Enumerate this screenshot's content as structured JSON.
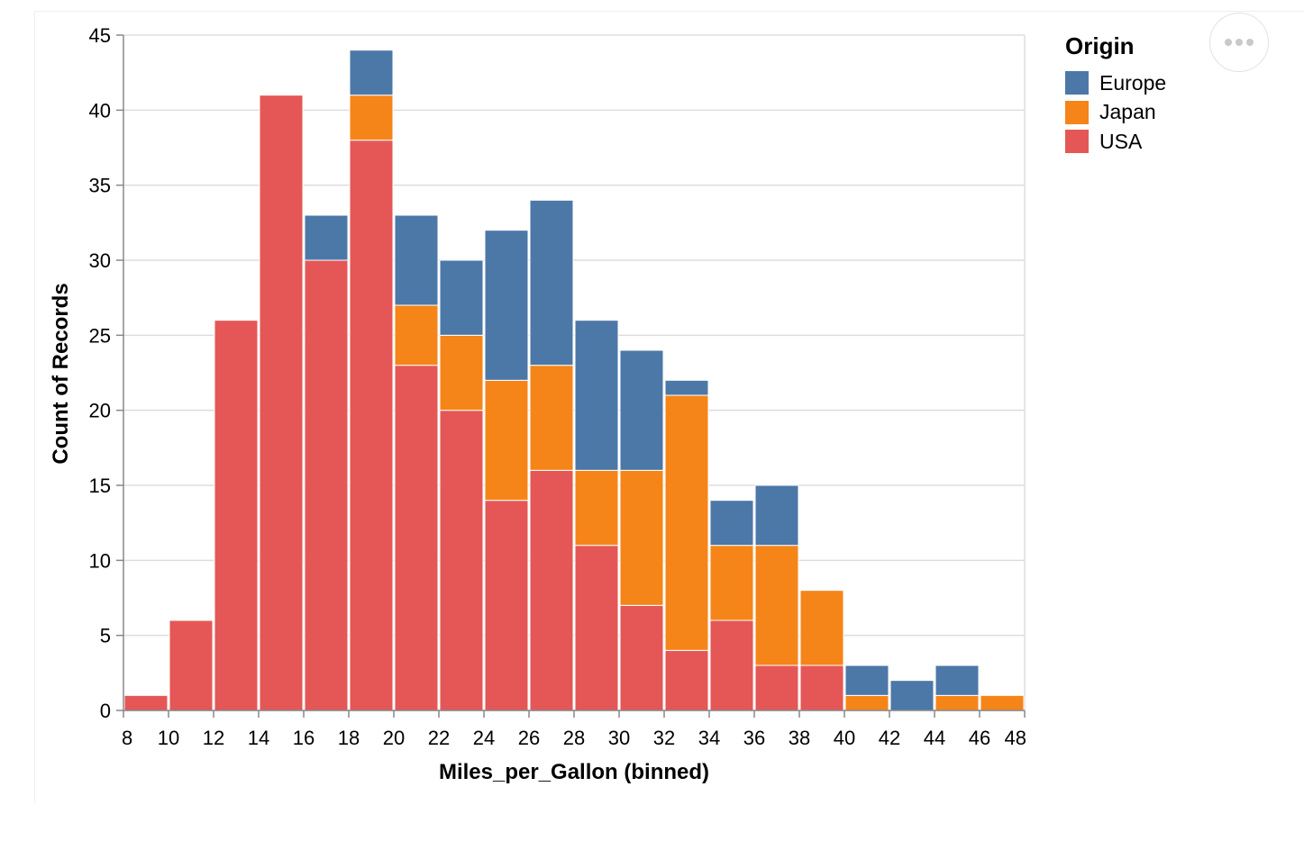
{
  "menu": {
    "icon": "ellipsis-icon"
  },
  "legend": {
    "title": "Origin",
    "items": [
      {
        "label": "Europe",
        "color": "#4c78a8"
      },
      {
        "label": "Japan",
        "color": "#f58518"
      },
      {
        "label": "USA",
        "color": "#e45756"
      }
    ]
  },
  "chart_data": {
    "type": "bar",
    "stacked": true,
    "xlabel": "Miles_per_Gallon (binned)",
    "ylabel": "Count of Records",
    "xlim": [
      8,
      48
    ],
    "ylim": [
      0,
      45
    ],
    "x_ticks": [
      8,
      10,
      12,
      14,
      16,
      18,
      20,
      22,
      24,
      26,
      28,
      30,
      32,
      34,
      36,
      38,
      40,
      42,
      44,
      46,
      48
    ],
    "y_ticks": [
      0,
      5,
      10,
      15,
      20,
      25,
      30,
      35,
      40,
      45
    ],
    "grid": true,
    "legend_position": "right",
    "bins": [
      [
        8,
        10
      ],
      [
        10,
        12
      ],
      [
        12,
        14
      ],
      [
        14,
        16
      ],
      [
        16,
        18
      ],
      [
        18,
        20
      ],
      [
        20,
        22
      ],
      [
        22,
        24
      ],
      [
        24,
        26
      ],
      [
        26,
        28
      ],
      [
        28,
        30
      ],
      [
        30,
        32
      ],
      [
        32,
        34
      ],
      [
        34,
        36
      ],
      [
        36,
        38
      ],
      [
        38,
        40
      ],
      [
        40,
        42
      ],
      [
        42,
        44
      ],
      [
        44,
        46
      ],
      [
        46,
        48
      ]
    ],
    "series": [
      {
        "name": "USA",
        "color": "#e45756",
        "values": [
          1,
          6,
          26,
          41,
          30,
          38,
          23,
          20,
          14,
          16,
          11,
          7,
          4,
          6,
          3,
          3,
          0,
          0,
          0,
          0
        ]
      },
      {
        "name": "Japan",
        "color": "#f58518",
        "values": [
          0,
          0,
          0,
          0,
          0,
          3,
          4,
          5,
          8,
          7,
          5,
          9,
          17,
          5,
          8,
          5,
          1,
          0,
          1,
          1
        ]
      },
      {
        "name": "Europe",
        "color": "#4c78a8",
        "values": [
          0,
          0,
          0,
          0,
          3,
          3,
          6,
          5,
          10,
          11,
          10,
          8,
          1,
          3,
          4,
          0,
          2,
          2,
          2,
          0
        ]
      }
    ]
  }
}
